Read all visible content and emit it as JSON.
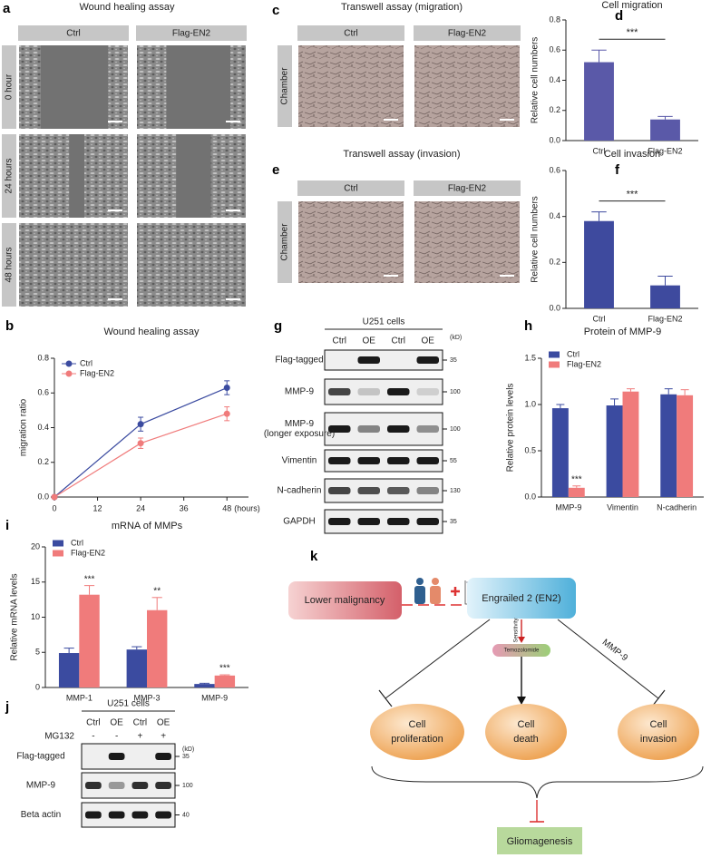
{
  "panels": {
    "a": {
      "label": "a",
      "title": "Wound healing assay",
      "columns": [
        "Ctrl",
        "Flag-EN2"
      ],
      "rows": [
        "0 hour",
        "24 hours",
        "48 hours"
      ]
    },
    "c": {
      "label": "c",
      "title": "Transwell assay (migration)",
      "columns": [
        "Ctrl",
        "Flag-EN2"
      ],
      "rows": [
        "Chamber"
      ]
    },
    "e": {
      "label": "e",
      "title": "Transwell assay (invasion)",
      "columns": [
        "Ctrl",
        "Flag-EN2"
      ],
      "rows": [
        "Chamber"
      ]
    },
    "g": {
      "label": "g",
      "header": "U251 cells",
      "lanes": [
        "Ctrl",
        "OE",
        "Ctrl",
        "OE"
      ],
      "unit": "(kD)",
      "blots": [
        {
          "label": [
            "Flag-tagged"
          ],
          "kd": 35
        },
        {
          "label": [
            "MMP-9"
          ],
          "kd": 100
        },
        {
          "label": [
            "MMP-9",
            "(longer exposure)"
          ],
          "kd": 100
        },
        {
          "label": [
            "Vimentin"
          ],
          "kd": 55
        },
        {
          "label": [
            "N-cadherin"
          ],
          "kd": 130
        },
        {
          "label": [
            "GAPDH"
          ],
          "kd": 35
        }
      ]
    },
    "j": {
      "label": "j",
      "header": "U251 cells",
      "lanes": [
        "Ctrl",
        "OE",
        "Ctrl",
        "OE"
      ],
      "unit": "(kD)",
      "treatment": {
        "label": "MG132",
        "marks": [
          "-",
          "-",
          "+",
          "+"
        ]
      },
      "blots": [
        {
          "label": [
            "Flag-tagged"
          ],
          "kd": 35
        },
        {
          "label": [
            "MMP-9"
          ],
          "kd": 100
        },
        {
          "label": [
            "Beta actin"
          ],
          "kd": 40
        }
      ]
    },
    "k": {
      "label": "k",
      "lower": "Lower malignancy",
      "en2": "Engrailed 2 (EN2)",
      "sensitivity": "Sensitivity",
      "drug": "Temozolomide",
      "mmp9": "MMP-9",
      "proliferation": [
        "Cell",
        "proliferation"
      ],
      "death": [
        "Cell",
        "death"
      ],
      "invasion": [
        "Cell",
        "invasion"
      ],
      "outcome": "Gliomagenesis"
    }
  },
  "chart_data": [
    {
      "type": "bar",
      "label": "d",
      "title": "Cell migration",
      "ylabel": "Relative cell numbers",
      "categories": [
        "Ctrl",
        "Flag-EN2"
      ],
      "values": [
        0.52,
        0.14
      ],
      "errors": [
        0.08,
        0.02
      ],
      "color": "#5a59a8",
      "significance": "***",
      "ylim": [
        0,
        0.8
      ],
      "yticks": [
        {
          "value": 0,
          "label": "0.0"
        },
        0.2,
        0.4,
        0.6,
        0.8
      ]
    },
    {
      "type": "bar",
      "label": "f",
      "title": "Cell invasion",
      "ylabel": "Relative cell numbers",
      "categories": [
        "Ctrl",
        "Flag-EN2"
      ],
      "values": [
        0.38,
        0.1
      ],
      "errors": [
        0.04,
        0.04
      ],
      "color": "#3e4a9e",
      "significance": "***",
      "ylim": [
        0,
        0.6
      ],
      "yticks": [
        {
          "value": 0,
          "label": "0.0"
        },
        0.2,
        0.4,
        0.6
      ]
    },
    {
      "type": "line",
      "label": "b",
      "title": "Wound healing assay",
      "ylabel": "migration ratio",
      "xlabel": "(hours)",
      "x": [
        0,
        24,
        48
      ],
      "xlim": [
        0,
        54
      ],
      "xticks": [
        0,
        12,
        24,
        36,
        48
      ],
      "ylim": [
        0,
        0.8
      ],
      "yticks": [
        {
          "value": 0,
          "label": "0.0"
        },
        0.2,
        0.4,
        0.6,
        0.8
      ],
      "legend": "upper left",
      "series": [
        {
          "name": "Ctrl",
          "color": "#3b4ba0",
          "values": [
            0,
            0.42,
            0.63
          ],
          "errors": [
            0,
            0.04,
            0.04
          ]
        },
        {
          "name": "Flag-EN2",
          "color": "#f07b7b",
          "values": [
            0,
            0.31,
            0.48
          ],
          "errors": [
            0,
            0.03,
            0.04
          ]
        }
      ]
    },
    {
      "type": "bar",
      "label": "h",
      "title": "Protein of MMP-9",
      "ylabel": "Relative protein levels",
      "categories": [
        "MMP-9",
        "Vimentin",
        "N-cadherin"
      ],
      "legend": "upper left",
      "ylim": [
        0,
        1.5
      ],
      "yticks": [
        {
          "value": 0,
          "label": "0.0"
        },
        0.5,
        {
          "value": 1,
          "label": "1.0"
        },
        1.5
      ],
      "series": [
        {
          "name": "Ctrl",
          "color": "#3b4ba0",
          "values": [
            0.96,
            0.99,
            1.11
          ],
          "errors": [
            0.04,
            0.07,
            0.06
          ],
          "annotations": [
            null,
            null,
            null
          ]
        },
        {
          "name": "Flag-EN2",
          "color": "#f07b7b",
          "values": [
            0.1,
            1.14,
            1.1
          ],
          "errors": [
            0.02,
            0.03,
            0.06
          ],
          "annotations": [
            "***",
            null,
            null
          ]
        }
      ]
    },
    {
      "type": "bar",
      "label": "i",
      "title": "mRNA of MMPs",
      "ylabel": "Relative mRNA levels",
      "categories": [
        "MMP-1",
        "MMP-3",
        "MMP-9"
      ],
      "legend": "upper left",
      "ylim": [
        0,
        20
      ],
      "yticks": [
        0,
        5,
        10,
        15,
        20
      ],
      "series": [
        {
          "name": "Ctrl",
          "color": "#3b4ba0",
          "values": [
            4.9,
            5.4,
            0.5
          ],
          "errors": [
            0.7,
            0.4,
            0.1
          ],
          "annotations": [
            null,
            null,
            null
          ]
        },
        {
          "name": "Flag-EN2",
          "color": "#f07b7b",
          "values": [
            13.2,
            11.0,
            1.7
          ],
          "errors": [
            1.3,
            1.8,
            0.1
          ],
          "annotations": [
            "***",
            "**",
            "***"
          ]
        }
      ]
    }
  ]
}
